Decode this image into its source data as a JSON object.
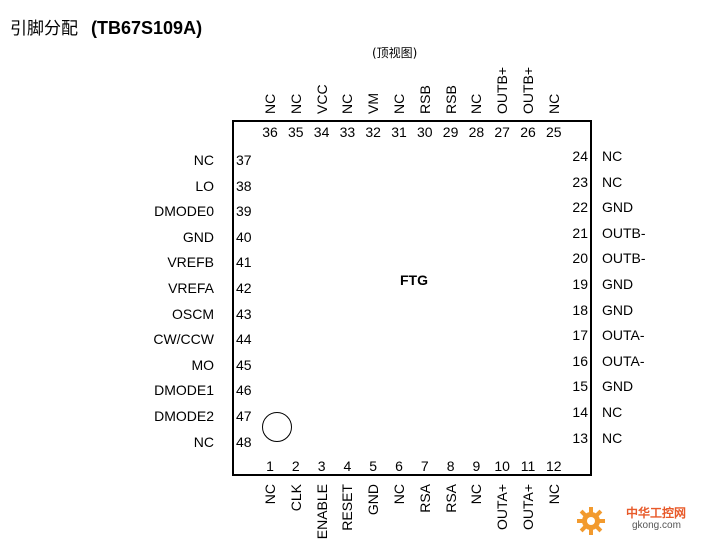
{
  "title_cn": "引脚分配",
  "title_model": "(TB67S109A)",
  "view_label": "(顶视图)",
  "package_label": "FTG",
  "pins_top": [
    {
      "num": "36",
      "name": "NC"
    },
    {
      "num": "35",
      "name": "NC"
    },
    {
      "num": "34",
      "name": "VCC"
    },
    {
      "num": "33",
      "name": "NC"
    },
    {
      "num": "32",
      "name": "VM"
    },
    {
      "num": "31",
      "name": "NC"
    },
    {
      "num": "30",
      "name": "RSB"
    },
    {
      "num": "29",
      "name": "RSB"
    },
    {
      "num": "28",
      "name": "NC"
    },
    {
      "num": "27",
      "name": "OUTB+"
    },
    {
      "num": "26",
      "name": "OUTB+"
    },
    {
      "num": "25",
      "name": "NC"
    }
  ],
  "pins_bottom": [
    {
      "num": "1",
      "name": "NC"
    },
    {
      "num": "2",
      "name": "CLK"
    },
    {
      "num": "3",
      "name": "ENABLE"
    },
    {
      "num": "4",
      "name": "RESET"
    },
    {
      "num": "5",
      "name": "GND"
    },
    {
      "num": "6",
      "name": "NC"
    },
    {
      "num": "7",
      "name": "RSA"
    },
    {
      "num": "8",
      "name": "RSA"
    },
    {
      "num": "9",
      "name": "NC"
    },
    {
      "num": "10",
      "name": "OUTA+"
    },
    {
      "num": "11",
      "name": "OUTA+"
    },
    {
      "num": "12",
      "name": "NC"
    }
  ],
  "pins_left": [
    {
      "num": "37",
      "name": "NC"
    },
    {
      "num": "38",
      "name": "LO"
    },
    {
      "num": "39",
      "name": "DMODE0"
    },
    {
      "num": "40",
      "name": "GND"
    },
    {
      "num": "41",
      "name": "VREFB"
    },
    {
      "num": "42",
      "name": "VREFA"
    },
    {
      "num": "43",
      "name": "OSCM"
    },
    {
      "num": "44",
      "name": "CW/CCW"
    },
    {
      "num": "45",
      "name": "MO"
    },
    {
      "num": "46",
      "name": "DMODE1"
    },
    {
      "num": "47",
      "name": "DMODE2"
    },
    {
      "num": "48",
      "name": "NC"
    }
  ],
  "pins_right": [
    {
      "num": "24",
      "name": "NC"
    },
    {
      "num": "23",
      "name": "NC"
    },
    {
      "num": "22",
      "name": "GND"
    },
    {
      "num": "21",
      "name": "OUTB-"
    },
    {
      "num": "20",
      "name": "OUTB-"
    },
    {
      "num": "19",
      "name": "GND"
    },
    {
      "num": "18",
      "name": "GND"
    },
    {
      "num": "17",
      "name": "OUTA-"
    },
    {
      "num": "16",
      "name": "OUTA-"
    },
    {
      "num": "15",
      "name": "GND"
    },
    {
      "num": "14",
      "name": "NC"
    },
    {
      "num": "13",
      "name": "NC"
    }
  ],
  "watermark": {
    "text": "中华工控网",
    "url": "gkong.com",
    "icon": "gear-icon"
  }
}
